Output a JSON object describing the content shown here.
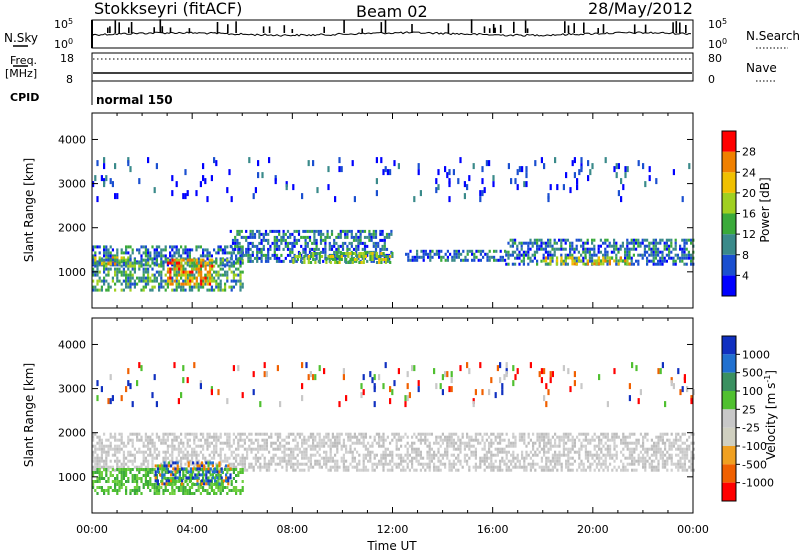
{
  "header": {
    "station": "Stokkseyri (fitACF)",
    "beam": "Beam 02",
    "date": "28/May/2012"
  },
  "status_panels": {
    "nsky": {
      "left_label": "N.Sky",
      "right_label": "N.Search",
      "tick_top": "10^5",
      "tick_bottom": "10^0"
    },
    "freq": {
      "label_top": "Freq.",
      "label_unit": "[MHz]",
      "tick_top": "18",
      "tick_bottom": "8",
      "nave_label": "Nave",
      "nave_tick_top": "80",
      "nave_tick_bottom": "0"
    },
    "cpid": {
      "label": "CPID",
      "value": "normal 150"
    }
  },
  "chart_data": [
    {
      "type": "heatmap",
      "name": "power-panel",
      "ylabel": "Slant Range [km]",
      "xlabel": "",
      "x_range_hours": [
        0,
        24
      ],
      "y_range_km": [
        180,
        4600
      ],
      "yticks": [
        1000,
        2000,
        3000,
        4000
      ],
      "xticks_hours": [
        0,
        4,
        8,
        12,
        16,
        20,
        24
      ],
      "colorbar": {
        "label": "Power [dB]",
        "ticks": [
          "4",
          "8",
          "12",
          "16",
          "20",
          "24",
          "28"
        ],
        "colors": [
          "#0000ff",
          "#1a4fd0",
          "#3a8a8a",
          "#3aaa3a",
          "#a0d020",
          "#f0c000",
          "#f08000",
          "#ff0000"
        ]
      },
      "regions": [
        {
          "t0": 0.0,
          "t1": 6.0,
          "r0": 1150,
          "r1": 1600,
          "level": 2
        },
        {
          "t0": 0.0,
          "t1": 1.5,
          "r0": 1200,
          "r1": 1350,
          "level": 5
        },
        {
          "t0": 0.0,
          "t1": 6.0,
          "r0": 600,
          "r1": 1300,
          "level": 3
        },
        {
          "t0": 3.0,
          "t1": 4.8,
          "r0": 750,
          "r1": 1300,
          "level": 6
        },
        {
          "t0": 5.5,
          "t1": 12.0,
          "r0": 1250,
          "r1": 1950,
          "level": 2
        },
        {
          "t0": 8.0,
          "t1": 12.0,
          "r0": 1200,
          "r1": 1450,
          "level": 4
        },
        {
          "t0": 12.5,
          "t1": 16.5,
          "r0": 1250,
          "r1": 1500,
          "level": 2
        },
        {
          "t0": 16.5,
          "t1": 24.0,
          "r0": 1150,
          "r1": 1750,
          "level": 2
        },
        {
          "t0": 18.0,
          "t1": 21.5,
          "r0": 1200,
          "r1": 1350,
          "level": 5
        },
        {
          "t0": 0.0,
          "t1": 24.0,
          "r0": 2700,
          "r1": 3600,
          "level": 1,
          "sparse": true
        }
      ]
    },
    {
      "type": "heatmap",
      "name": "velocity-panel",
      "ylabel": "Slant Range [km]",
      "xlabel": "Time UT",
      "x_range_hours": [
        0,
        24
      ],
      "y_range_km": [
        180,
        4600
      ],
      "yticks": [
        1000,
        2000,
        3000,
        4000
      ],
      "xticks_hours": [
        0,
        4,
        8,
        12,
        16,
        20,
        24
      ],
      "xtick_labels": [
        "00:00",
        "04:00",
        "08:00",
        "12:00",
        "16:00",
        "20:00",
        "00:00"
      ],
      "colorbar": {
        "label": "Velocity [m s^-1]",
        "ticks": [
          "1000",
          "500",
          "100",
          "25",
          "-25",
          "-100",
          "-500",
          "-1000"
        ],
        "colors": [
          "#1030c0",
          "#2070d0",
          "#3a9060",
          "#50c030",
          "#c8c8c8",
          "#d0d0c0",
          "#f0a020",
          "#f06000",
          "#ff0000"
        ]
      },
      "regions": [
        {
          "t0": 0.0,
          "t1": 24.0,
          "r0": 1150,
          "r1": 2000,
          "level": "gray"
        },
        {
          "t0": 0.0,
          "t1": 6.0,
          "r0": 600,
          "r1": 1200,
          "level": "green"
        },
        {
          "t0": 2.5,
          "t1": 5.5,
          "r0": 850,
          "r1": 1350,
          "level": "blue"
        },
        {
          "t0": 0.0,
          "t1": 24.0,
          "r0": 2700,
          "r1": 3600,
          "level": "sparse",
          "sparse": true
        }
      ]
    }
  ]
}
